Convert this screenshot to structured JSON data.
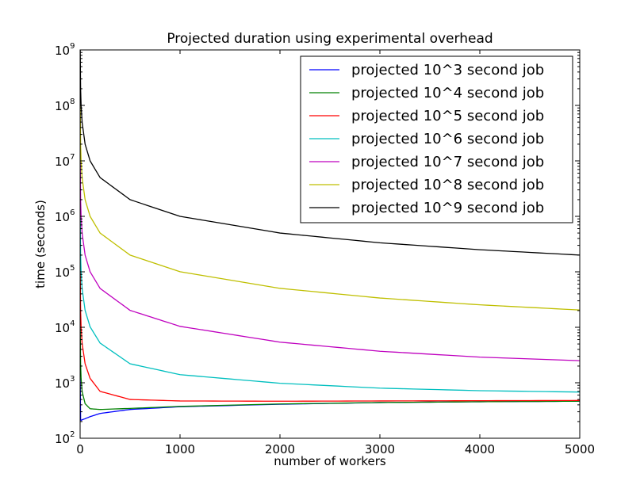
{
  "chart_data": {
    "type": "line",
    "title": "Projected duration using experimental overhead",
    "xlabel": "number of workers",
    "ylabel": "time (seconds)",
    "xlim": [
      0,
      5000
    ],
    "ylim": [
      100,
      1000000000
    ],
    "yscale": "log",
    "grid": false,
    "legend_position": "top-right",
    "x_ticks": [
      {
        "value": 0,
        "label": "0"
      },
      {
        "value": 1000,
        "label": "1000"
      },
      {
        "value": 2000,
        "label": "2000"
      },
      {
        "value": 3000,
        "label": "3000"
      },
      {
        "value": 4000,
        "label": "4000"
      },
      {
        "value": 5000,
        "label": "5000"
      }
    ],
    "y_ticks": [
      {
        "value": 100,
        "base": "10",
        "exp": "2"
      },
      {
        "value": 1000,
        "base": "10",
        "exp": "3"
      },
      {
        "value": 10000,
        "base": "10",
        "exp": "4"
      },
      {
        "value": 100000,
        "base": "10",
        "exp": "5"
      },
      {
        "value": 1000000,
        "base": "10",
        "exp": "6"
      },
      {
        "value": 10000000,
        "base": "10",
        "exp": "7"
      },
      {
        "value": 100000000,
        "base": "10",
        "exp": "8"
      },
      {
        "value": 1000000000,
        "base": "10",
        "exp": "9"
      }
    ],
    "series": [
      {
        "name": "projected 10^3 second job",
        "color": "#0000ff",
        "job": 1000,
        "x": [
          1,
          5,
          10,
          20,
          50,
          100,
          200,
          500,
          1000,
          2000,
          3000,
          4000,
          5000
        ],
        "y": [
          1200,
          220,
          210,
          215,
          225,
          245,
          280,
          330,
          370,
          410,
          440,
          455,
          465
        ]
      },
      {
        "name": "projected 10^4 second job",
        "color": "#008000",
        "job": 10000,
        "x": [
          1,
          5,
          10,
          20,
          50,
          100,
          200,
          500,
          1000,
          2000,
          3000,
          4000,
          5000
        ],
        "y": [
          10200,
          2200,
          1200,
          700,
          420,
          340,
          330,
          345,
          375,
          415,
          440,
          455,
          465
        ]
      },
      {
        "name": "projected 10^5 second job",
        "color": "#ff0000",
        "job": 100000,
        "x": [
          1,
          5,
          10,
          20,
          50,
          100,
          200,
          500,
          1000,
          2000,
          3000,
          4000,
          5000
        ],
        "y": [
          100200,
          20200,
          10200,
          5200,
          2200,
          1200,
          700,
          500,
          470,
          465,
          470,
          475,
          480
        ]
      },
      {
        "name": "projected 10^6 second job",
        "color": "#00bfbf",
        "job": 1000000,
        "x": [
          1,
          5,
          10,
          20,
          50,
          100,
          200,
          500,
          1000,
          2000,
          3000,
          4000,
          5000
        ],
        "y": [
          1000200,
          200200,
          100200,
          50200,
          20200,
          10200,
          5200,
          2200,
          1400,
          980,
          800,
          720,
          680
        ]
      },
      {
        "name": "projected 10^7 second job",
        "color": "#bf00bf",
        "job": 10000000,
        "x": [
          1,
          5,
          10,
          20,
          50,
          100,
          200,
          500,
          1000,
          2000,
          3000,
          4000,
          5000
        ],
        "y": [
          10000200,
          2000200,
          1000200,
          500200,
          200200,
          100200,
          50200,
          20200,
          10400,
          5400,
          3700,
          2900,
          2500
        ]
      },
      {
        "name": "projected 10^8 second job",
        "color": "#bfbf00",
        "job": 100000000,
        "x": [
          1,
          5,
          10,
          20,
          50,
          100,
          200,
          500,
          1000,
          2000,
          3000,
          4000,
          5000
        ],
        "y": [
          100000200,
          20000200,
          10000200,
          5000200,
          2000200,
          1000200,
          500200,
          200200,
          100400,
          50400,
          33700,
          25400,
          20500
        ]
      },
      {
        "name": "projected 10^9 second job",
        "color": "#000000",
        "job": 1000000000,
        "x": [
          1,
          5,
          10,
          20,
          50,
          100,
          200,
          500,
          1000,
          2000,
          3000,
          4000,
          5000
        ],
        "y": [
          1000000200,
          200000200,
          100000200,
          50000200,
          20000200,
          10000200,
          5000200,
          2000200,
          1000400,
          500400,
          333700,
          250400,
          200500
        ]
      }
    ]
  }
}
